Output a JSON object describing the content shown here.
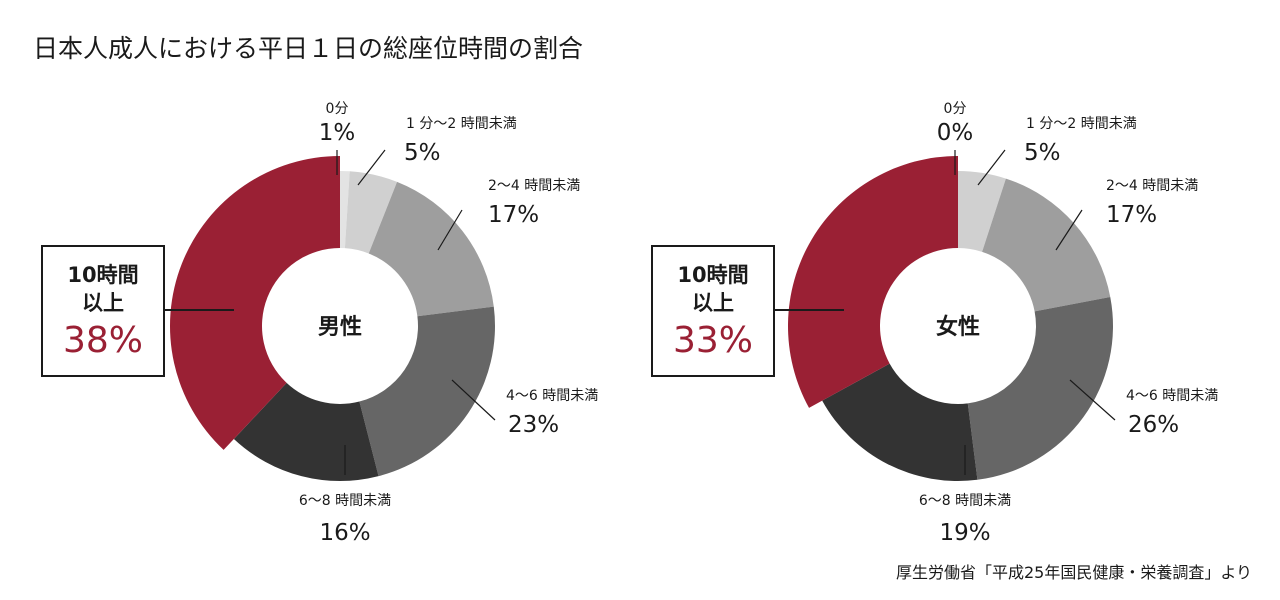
{
  "title": "日本人成人における平日１日の総座位時間の割合",
  "source": "厚生労働省「平成25年国民健康・栄養調査」より",
  "chart_data": [
    {
      "type": "pie",
      "center_label": "男性",
      "direction": "clockwise",
      "start": "12 o'clock",
      "categories": [
        "0分",
        "1 分〜2 時間未満",
        "2〜4 時間未満",
        "4〜6 時間未満",
        "6〜8 時間未満",
        "10時間以上"
      ],
      "values": [
        1,
        5,
        17,
        23,
        16,
        38
      ],
      "value_labels": [
        "1%",
        "5%",
        "17%",
        "23%",
        "16%",
        "38%"
      ],
      "colors": [
        "#e3e3e3",
        "#d0d0d0",
        "#9e9e9e",
        "#666666",
        "#333333",
        "#9a2034"
      ],
      "highlight": {
        "head_line1": "10時間",
        "head_line2": "以上",
        "pct": "38%"
      }
    },
    {
      "type": "pie",
      "center_label": "女性",
      "direction": "clockwise",
      "start": "12 o'clock",
      "categories": [
        "0分",
        "1 分〜2 時間未満",
        "2〜4 時間未満",
        "4〜6 時間未満",
        "6〜8 時間未満",
        "10時間以上"
      ],
      "values": [
        0,
        5,
        17,
        26,
        19,
        33
      ],
      "value_labels": [
        "0%",
        "5%",
        "17%",
        "26%",
        "19%",
        "33%"
      ],
      "colors": [
        "#e3e3e3",
        "#d0d0d0",
        "#9e9e9e",
        "#666666",
        "#333333",
        "#9a2034"
      ],
      "highlight": {
        "head_line1": "10時間",
        "head_line2": "以上",
        "pct": "33%"
      }
    }
  ]
}
